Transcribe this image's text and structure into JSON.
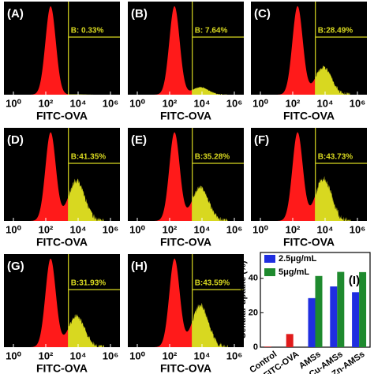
{
  "chart_data": [
    {
      "type": "density",
      "panel_label": "(A)",
      "xlabel": "FITC-OVA",
      "xlim": [
        1,
        1000000
      ],
      "log_x": true,
      "xticks": [
        {
          "value": 1,
          "label": "10⁰"
        },
        {
          "value": 100,
          "label": "10²"
        },
        {
          "value": 10000,
          "label": "10⁴"
        },
        {
          "value": 1000000,
          "label": "10⁶"
        }
      ],
      "gate_label": "B: 0.33%",
      "gate_value": 0.33,
      "color": "#ff1a1a",
      "gate_color": "#d8d820",
      "background": "#000000"
    },
    {
      "type": "density",
      "panel_label": "(B)",
      "xlabel": "FITC-OVA",
      "xlim": [
        1,
        1000000
      ],
      "log_x": true,
      "xticks": [
        {
          "value": 1,
          "label": "10⁰"
        },
        {
          "value": 100,
          "label": "10²"
        },
        {
          "value": 10000,
          "label": "10⁴"
        },
        {
          "value": 1000000,
          "label": "10⁶"
        }
      ],
      "gate_label": "B: 7.64%",
      "gate_value": 7.64,
      "color": "#ff1a1a",
      "gate_color": "#d8d820",
      "background": "#000000"
    },
    {
      "type": "density",
      "panel_label": "(C)",
      "xlabel": "FITC-OVA",
      "xlim": [
        1,
        1000000
      ],
      "log_x": true,
      "xticks": [
        {
          "value": 1,
          "label": "10⁰"
        },
        {
          "value": 100,
          "label": "10²"
        },
        {
          "value": 10000,
          "label": "10⁴"
        },
        {
          "value": 1000000,
          "label": "10⁶"
        }
      ],
      "gate_label": "B:28.49%",
      "gate_value": 28.49,
      "color": "#ff1a1a",
      "gate_color": "#d8d820",
      "background": "#000000"
    },
    {
      "type": "density",
      "panel_label": "(D)",
      "xlabel": "FITC-OVA",
      "xlim": [
        1,
        1000000
      ],
      "log_x": true,
      "xticks": [
        {
          "value": 1,
          "label": "10⁰"
        },
        {
          "value": 100,
          "label": "10²"
        },
        {
          "value": 10000,
          "label": "10⁴"
        },
        {
          "value": 1000000,
          "label": "10⁶"
        }
      ],
      "gate_label": "B:41.35%",
      "gate_value": 41.35,
      "color": "#ff1a1a",
      "gate_color": "#d8d820",
      "background": "#000000"
    },
    {
      "type": "density",
      "panel_label": "(E)",
      "xlabel": "FITC-OVA",
      "xlim": [
        1,
        1000000
      ],
      "log_x": true,
      "xticks": [
        {
          "value": 1,
          "label": "10⁰"
        },
        {
          "value": 100,
          "label": "10²"
        },
        {
          "value": 10000,
          "label": "10⁴"
        },
        {
          "value": 1000000,
          "label": "10⁶"
        }
      ],
      "gate_label": "B:35.28%",
      "gate_value": 35.28,
      "color": "#ff1a1a",
      "gate_color": "#d8d820",
      "background": "#000000"
    },
    {
      "type": "density",
      "panel_label": "(F)",
      "xlabel": "FITC-OVA",
      "xlim": [
        1,
        1000000
      ],
      "log_x": true,
      "xticks": [
        {
          "value": 1,
          "label": "10⁰"
        },
        {
          "value": 100,
          "label": "10²"
        },
        {
          "value": 10000,
          "label": "10⁴"
        },
        {
          "value": 1000000,
          "label": "10⁶"
        }
      ],
      "gate_label": "B:43.73%",
      "gate_value": 43.73,
      "color": "#ff1a1a",
      "gate_color": "#d8d820",
      "background": "#000000"
    },
    {
      "type": "density",
      "panel_label": "(G)",
      "xlabel": "FITC-OVA",
      "xlim": [
        1,
        1000000
      ],
      "log_x": true,
      "xticks": [
        {
          "value": 1,
          "label": "10⁰"
        },
        {
          "value": 100,
          "label": "10²"
        },
        {
          "value": 10000,
          "label": "10⁴"
        },
        {
          "value": 1000000,
          "label": "10⁶"
        }
      ],
      "gate_label": "B:31.93%",
      "gate_value": 31.93,
      "color": "#ff1a1a",
      "gate_color": "#d8d820",
      "background": "#000000"
    },
    {
      "type": "density",
      "panel_label": "(H)",
      "xlabel": "FITC-OVA",
      "xlim": [
        1,
        1000000
      ],
      "log_x": true,
      "xticks": [
        {
          "value": 1,
          "label": "10⁰"
        },
        {
          "value": 100,
          "label": "10²"
        },
        {
          "value": 10000,
          "label": "10⁴"
        },
        {
          "value": 1000000,
          "label": "10⁶"
        }
      ],
      "gate_label": "B:43.59%",
      "gate_value": 43.59,
      "color": "#ff1a1a",
      "gate_color": "#d8d820",
      "background": "#000000"
    },
    {
      "type": "bar",
      "panel_label": "(I)",
      "ylabel": "Cellular uptake (%)",
      "categories": [
        "Control",
        "FITC-OVA",
        "AMSs",
        "Cu-AMSs",
        "Zn-AMSs"
      ],
      "series": [
        {
          "name": "2.5μg/mL",
          "color": "#1f2ee0",
          "point_colors": [
            "#e01b1b",
            "#e01b1b",
            "#1f2ee0",
            "#1f2ee0",
            "#1f2ee0"
          ],
          "values": [
            0.33,
            7.64,
            28.49,
            35.28,
            31.93
          ]
        },
        {
          "name": "5μg/mL",
          "color": "#1e8a2e",
          "values": [
            null,
            null,
            41.35,
            43.73,
            43.59
          ]
        }
      ],
      "ylim": [
        0,
        55
      ],
      "yticks": [
        0,
        20,
        40
      ]
    }
  ]
}
